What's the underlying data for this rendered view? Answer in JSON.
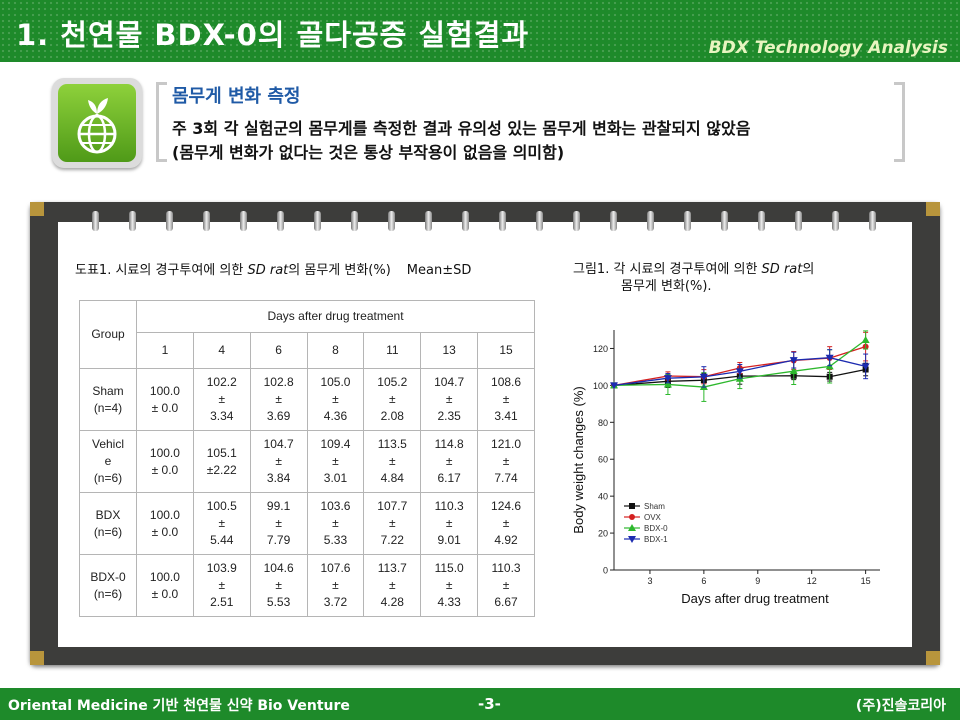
{
  "header": {
    "title": "1. 천연물 BDX-0의 골다공증 실험결과",
    "subtitle": "BDX Technology Analysis"
  },
  "icon": {
    "name": "globe-sprout-icon",
    "color": "#6fb52a"
  },
  "summary": {
    "heading": "몸무게 변화 측정",
    "line1": "주 3회 각 실험군의 몸무게를 측정한 결과 유의성 있는 몸무게 변화는 관찰되지 않았음",
    "line2": "(몸무게 변화가 없다는 것은 통상 부작용이 없음을 의미함)"
  },
  "table": {
    "caption_prefix": "도표1. 시료의 경구투여에 의한 ",
    "caption_italic": "SD rat",
    "caption_suffix": "의 몸무게 변화(%)",
    "caption_stat": "Mean±SD",
    "group_header": "Group",
    "days_header": "Days after drug treatment",
    "days": [
      "1",
      "4",
      "6",
      "8",
      "11",
      "13",
      "15"
    ],
    "rows": [
      {
        "group": [
          "Sham",
          "(n=4)"
        ],
        "cells": [
          [
            "100.0",
            "± 0.0"
          ],
          [
            "102.2",
            "±",
            "3.34"
          ],
          [
            "102.8",
            "±",
            "3.69"
          ],
          [
            "105.0",
            "±",
            "4.36"
          ],
          [
            "105.2",
            "±",
            "2.08"
          ],
          [
            "104.7",
            "±",
            "2.35"
          ],
          [
            "108.6",
            "±",
            "3.41"
          ]
        ]
      },
      {
        "group": [
          "Vehicl",
          "e",
          "(n=6)"
        ],
        "cells": [
          [
            "100.0",
            "± 0.0"
          ],
          [
            "105.1",
            "±2.22"
          ],
          [
            "104.7",
            "±",
            "3.84"
          ],
          [
            "109.4",
            "±",
            "3.01"
          ],
          [
            "113.5",
            "±",
            "4.84"
          ],
          [
            "114.8",
            "±",
            "6.17"
          ],
          [
            "121.0",
            "±",
            "7.74"
          ]
        ]
      },
      {
        "group": [
          "BDX",
          "(n=6)"
        ],
        "cells": [
          [
            "100.0",
            "± 0.0"
          ],
          [
            "100.5",
            "±",
            "5.44"
          ],
          [
            "99.1",
            "±",
            "7.79"
          ],
          [
            "103.6",
            "±",
            "5.33"
          ],
          [
            "107.7",
            "±",
            "7.22"
          ],
          [
            "110.3",
            "±",
            "9.01"
          ],
          [
            "124.6",
            "±",
            "4.92"
          ]
        ]
      },
      {
        "group": [
          "BDX-0",
          "(n=6)"
        ],
        "cells": [
          [
            "100.0",
            "± 0.0"
          ],
          [
            "103.9",
            "±",
            "2.51"
          ],
          [
            "104.6",
            "±",
            "5.53"
          ],
          [
            "107.6",
            "±",
            "3.72"
          ],
          [
            "113.7",
            "±",
            "4.28"
          ],
          [
            "115.0",
            "±",
            "4.33"
          ],
          [
            "110.3",
            "±",
            "6.67"
          ]
        ]
      }
    ]
  },
  "chart_data": {
    "type": "line",
    "caption_line1_prefix": "그림1. 각 시료의 경구투여에 의한 ",
    "caption_italic": "SD rat",
    "caption_line1_suffix": "의",
    "caption_line2": "몸무게 변화(%).",
    "xlabel": "Days after drug treatment",
    "ylabel": "Body weight changes (%)",
    "x": [
      1,
      4,
      6,
      8,
      11,
      13,
      15
    ],
    "xlim": [
      1,
      15.8
    ],
    "ylim": [
      0,
      130
    ],
    "xticks": [
      3,
      6,
      9,
      12,
      15
    ],
    "yticks": [
      0,
      20,
      40,
      60,
      80,
      100,
      120
    ],
    "legend_position": "bottom-left",
    "series": [
      {
        "name": "Sham",
        "color": "#111111",
        "marker": "square",
        "values": [
          100.0,
          102.2,
          102.8,
          105.0,
          105.2,
          104.7,
          108.6
        ],
        "errors": [
          0.0,
          3.34,
          3.69,
          4.36,
          2.08,
          2.35,
          3.41
        ]
      },
      {
        "name": "OVX",
        "color": "#d42020",
        "marker": "circle",
        "values": [
          100.0,
          105.1,
          104.7,
          109.4,
          113.5,
          114.8,
          121.0
        ],
        "errors": [
          0.0,
          2.22,
          3.84,
          3.01,
          4.84,
          6.17,
          7.74
        ]
      },
      {
        "name": "BDX-0",
        "color": "#2db82d",
        "marker": "triangle-up",
        "values": [
          100.0,
          100.5,
          99.1,
          103.6,
          107.7,
          110.3,
          124.6
        ],
        "errors": [
          0.0,
          5.44,
          7.79,
          5.33,
          7.22,
          9.01,
          4.92
        ]
      },
      {
        "name": "BDX-1",
        "color": "#1c2bb0",
        "marker": "triangle-down",
        "values": [
          100.0,
          103.9,
          104.6,
          107.6,
          113.7,
          115.0,
          110.3
        ],
        "errors": [
          0.0,
          2.51,
          5.53,
          3.72,
          4.28,
          4.33,
          6.67
        ]
      }
    ]
  },
  "footer": {
    "left": "Oriental Medicine 기반 천연물 신약 Bio Venture",
    "page": "-3-",
    "right": "(주)진솔코리아"
  }
}
